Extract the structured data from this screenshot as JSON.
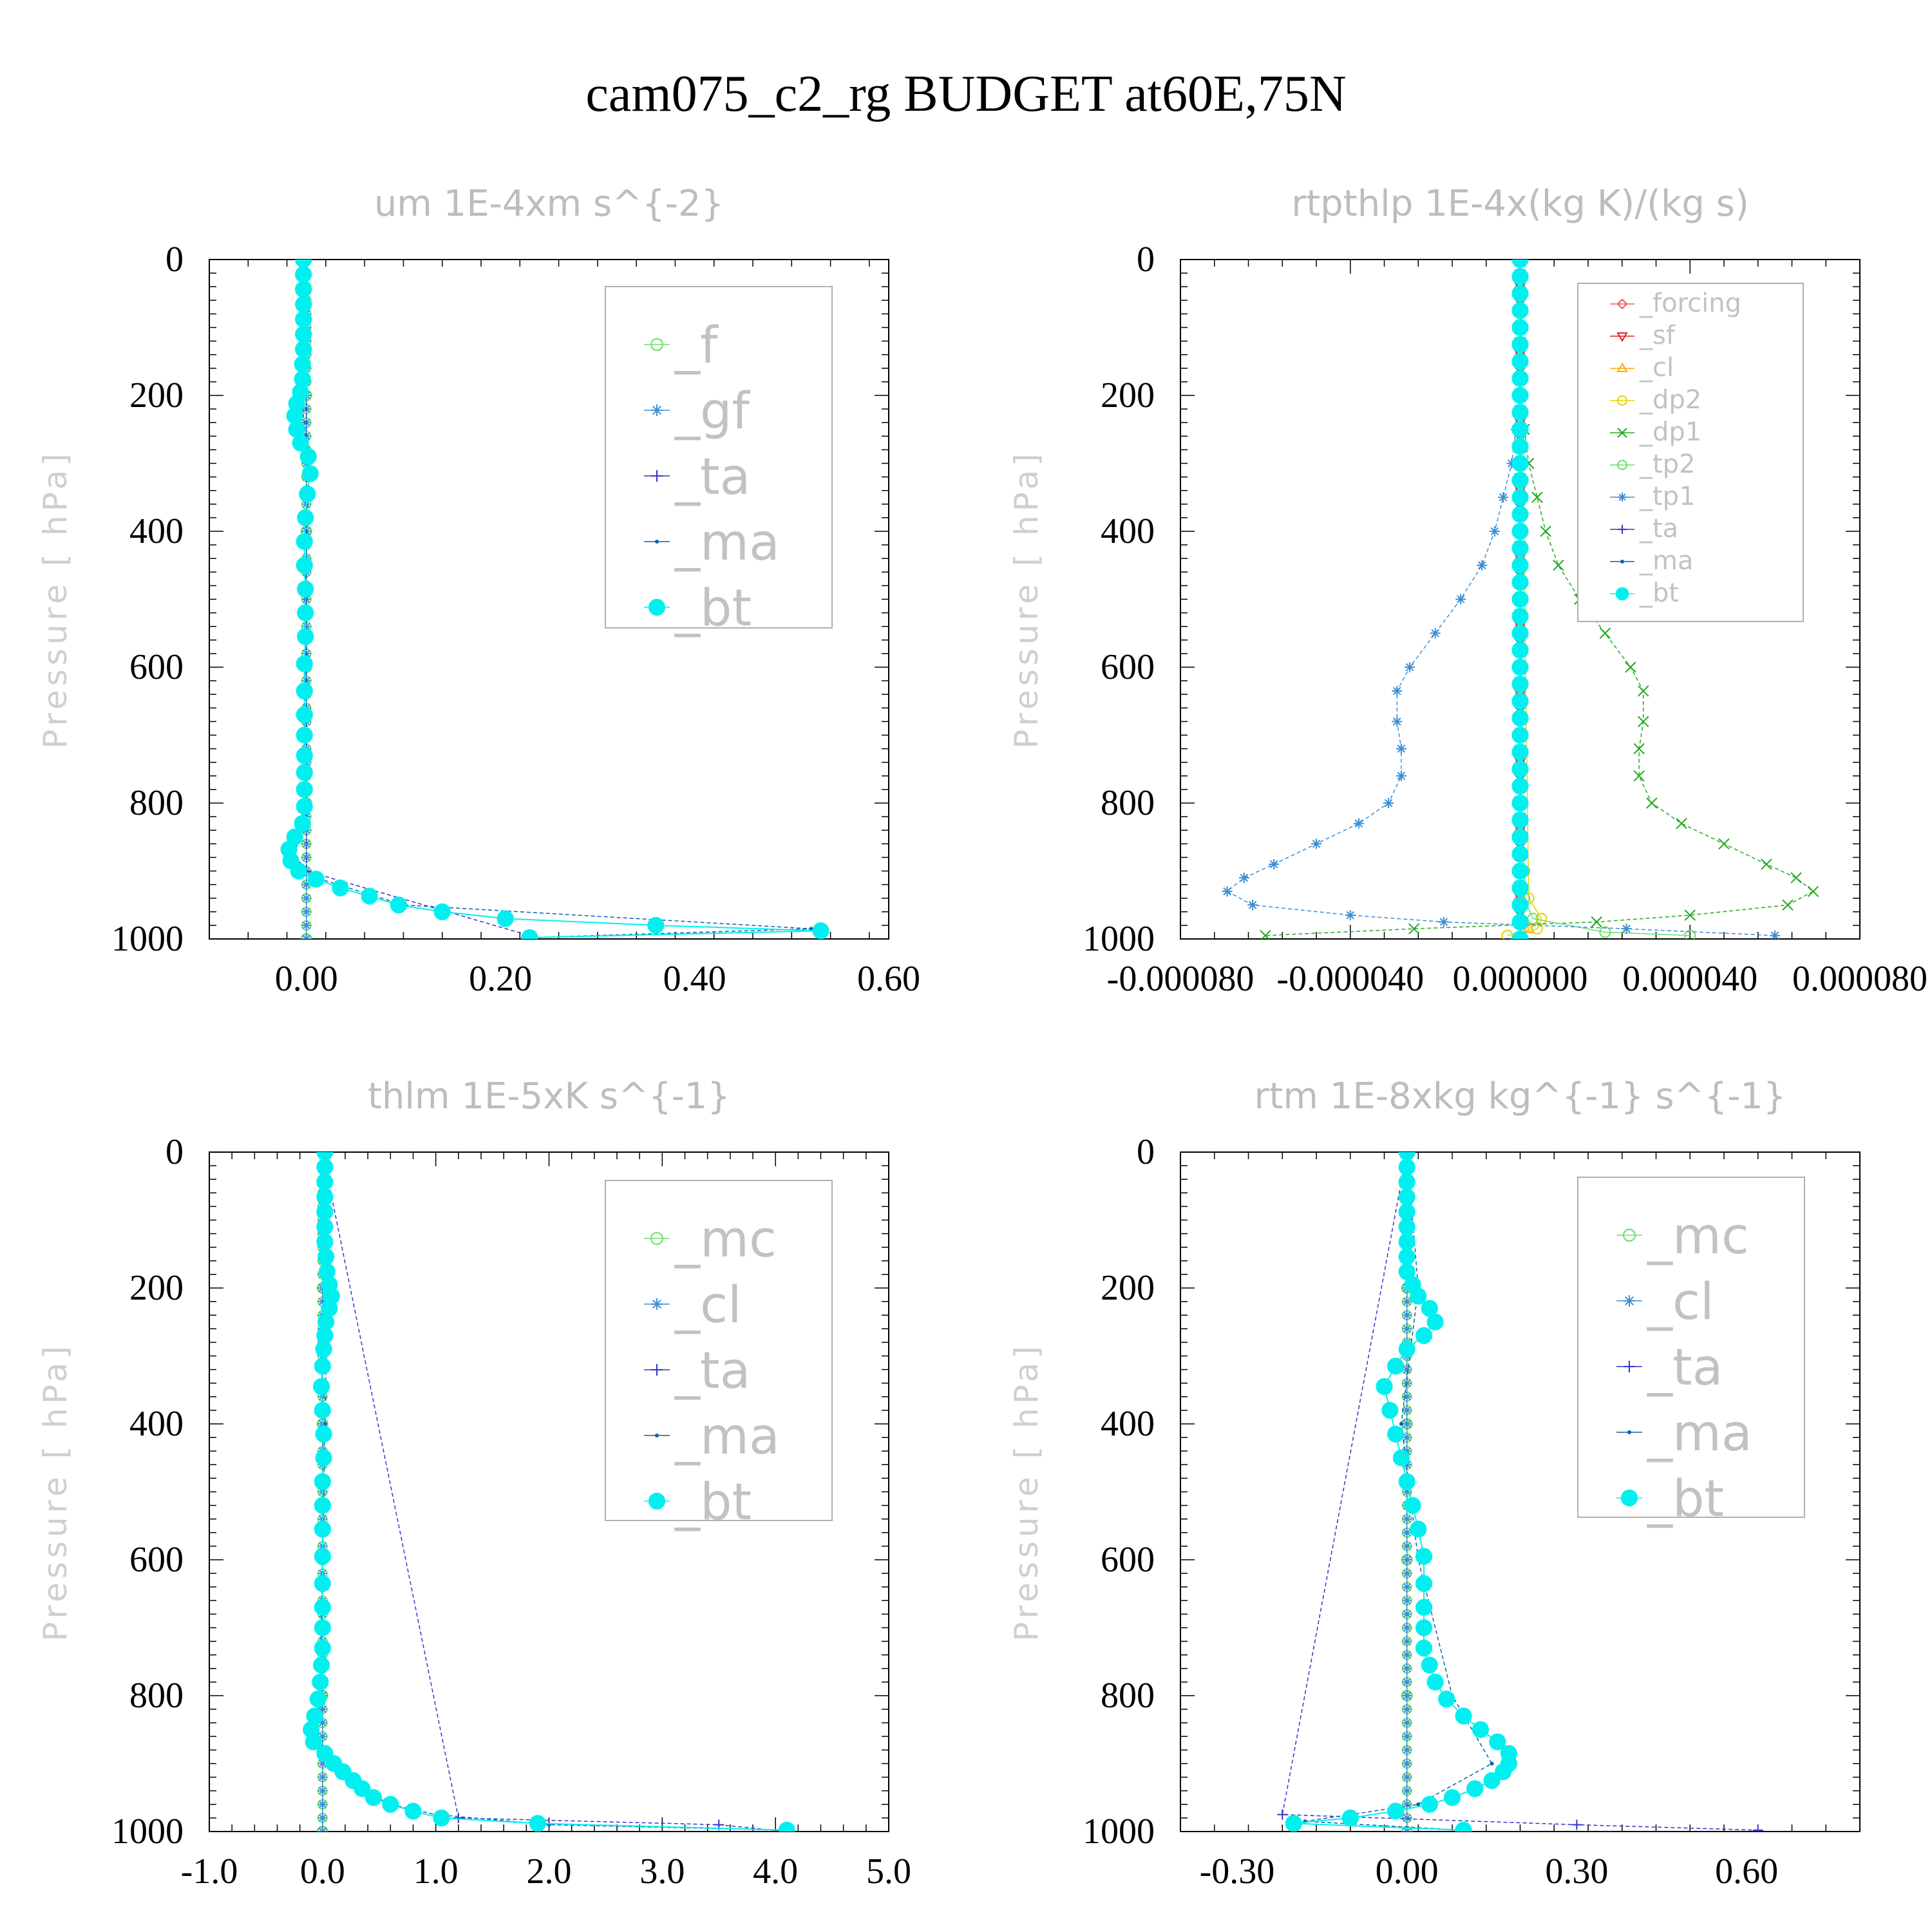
{
  "title": "cam075_c2_rg  BUDGET at60E,75N",
  "colors": {
    "_f": "#66e066",
    "_gf": "#3a8fd6",
    "_ta": "#3333cc",
    "_ma": "#0c5fb0",
    "_bt": "#00f0f0",
    "_forcing": "#e65c5c",
    "_sf": "#e02020",
    "_cl": "#ffa500",
    "_dp2": "#e6d000",
    "_dp1": "#22aa22",
    "_tp2": "#66e066",
    "_tp1": "#3a8fd6",
    "_mc": "#66e066",
    "_cl_blue": "#3a8fd6"
  },
  "chart_data": [
    {
      "type": "line",
      "title": "um  1E-4xm s^{-2}",
      "ylabel": "Pressure [ hPa]",
      "xlim": [
        -0.1,
        0.6
      ],
      "ylim": [
        1000,
        0
      ],
      "xticks": [
        0.0,
        0.2,
        0.4,
        0.6
      ],
      "xtick_labels": [
        "0.00",
        "0.20",
        "0.40",
        "0.60"
      ],
      "yticks": [
        0,
        200,
        400,
        600,
        800,
        1000
      ],
      "ytick_labels": [
        "0",
        "200",
        "400",
        "600",
        "800",
        "1000"
      ],
      "legend": [
        "_f",
        "_gf",
        "_ta",
        "_ma",
        "_bt"
      ],
      "legend_font": 78,
      "series": [
        {
          "name": "_f",
          "marker": "circle-open",
          "y": [
            0,
            200,
            400,
            600,
            800,
            1000
          ],
          "x": [
            0,
            0,
            0,
            0,
            0,
            0
          ]
        },
        {
          "name": "_gf",
          "marker": "star",
          "y": [
            0,
            200,
            400,
            600,
            800,
            1000
          ],
          "x": [
            0,
            0,
            0,
            0,
            0,
            0
          ]
        },
        {
          "name": "_ta",
          "marker": "plus",
          "y": [
            0,
            900,
            995
          ],
          "x": [
            0,
            0,
            0.23
          ]
        },
        {
          "name": "_ma",
          "marker": "dot",
          "y": [
            0,
            200,
            300,
            500,
            800,
            880,
            910,
            950,
            985,
            998
          ],
          "x": [
            -0.003,
            -0.005,
            0.002,
            -0.001,
            -0.002,
            -0.012,
            0.01,
            0.1,
            0.52,
            0.23
          ]
        },
        {
          "name": "_bt",
          "marker": "filled-circle",
          "y": [
            0,
            22,
            44,
            66,
            88,
            110,
            132,
            154,
            176,
            195,
            212,
            230,
            250,
            270,
            290,
            315,
            345,
            380,
            415,
            450,
            485,
            520,
            555,
            595,
            635,
            670,
            700,
            730,
            755,
            780,
            805,
            830,
            850,
            868,
            885,
            900,
            912,
            925,
            937,
            950,
            960,
            970,
            980,
            988,
            998
          ],
          "x": [
            -0.003,
            -0.003,
            -0.003,
            -0.003,
            -0.003,
            -0.003,
            -0.003,
            -0.004,
            -0.004,
            -0.006,
            -0.01,
            -0.012,
            -0.01,
            -0.006,
            0.002,
            0.004,
            0.001,
            -0.001,
            -0.002,
            -0.002,
            -0.001,
            -0.001,
            -0.001,
            -0.002,
            -0.002,
            -0.002,
            -0.002,
            -0.002,
            -0.002,
            -0.002,
            -0.002,
            -0.004,
            -0.012,
            -0.018,
            -0.016,
            -0.008,
            0.01,
            0.035,
            0.065,
            0.095,
            0.14,
            0.205,
            0.36,
            0.53,
            0.23
          ]
        }
      ]
    },
    {
      "type": "line",
      "title": "rtpthlp  1E-4x(kg K)/(kg s)",
      "ylabel": "Pressure [ hPa]",
      "xlim": [
        -8e-05,
        8e-05
      ],
      "ylim": [
        1000,
        0
      ],
      "xticks": [
        -8e-05,
        -4e-05,
        0.0,
        4e-05,
        8e-05
      ],
      "xtick_labels": [
        "-0.000080",
        "-0.000040",
        "0.000000",
        "0.000040",
        "0.000080"
      ],
      "yticks": [
        0,
        200,
        400,
        600,
        800,
        1000
      ],
      "ytick_labels": [
        "0",
        "200",
        "400",
        "600",
        "800",
        "1000"
      ],
      "legend": [
        "_forcing",
        "_sf",
        "_cl",
        "_dp2",
        "_dp1",
        "_tp2",
        "_tp1",
        "_ta",
        "_ma",
        "_bt"
      ],
      "legend_font": 40,
      "series": [
        {
          "name": "_forcing",
          "marker": "diamond",
          "y": [
            0,
            500,
            1000
          ],
          "x": [
            0,
            0,
            0
          ]
        },
        {
          "name": "_sf",
          "marker": "tri-down",
          "y": [
            0,
            500,
            1000
          ],
          "x": [
            0,
            0,
            0
          ]
        },
        {
          "name": "_cl",
          "marker": "tri-up",
          "y": [
            0,
            950,
            985,
            1000
          ],
          "x": [
            0,
            0,
            2e-06,
            0
          ]
        },
        {
          "name": "_dp2",
          "marker": "circle-open",
          "y": [
            0,
            940,
            970,
            985,
            995
          ],
          "x": [
            0,
            2e-06,
            5e-06,
            4e-06,
            -3e-06
          ]
        },
        {
          "name": "_dp1",
          "marker": "x",
          "y": [
            250,
            300,
            350,
            400,
            450,
            500,
            550,
            600,
            635,
            680,
            720,
            760,
            800,
            830,
            860,
            890,
            910,
            930,
            950,
            965,
            975,
            985,
            995
          ],
          "x": [
            1e-06,
            2e-06,
            4e-06,
            6e-06,
            9e-06,
            1.4e-05,
            2e-05,
            2.6e-05,
            2.9e-05,
            2.9e-05,
            2.8e-05,
            2.8e-05,
            3.1e-05,
            3.8e-05,
            4.8e-05,
            5.8e-05,
            6.5e-05,
            6.9e-05,
            6.3e-05,
            4e-05,
            1.8e-05,
            -2.5e-05,
            -6e-05
          ]
        },
        {
          "name": "_tp2",
          "marker": "circle-open",
          "y": [
            850,
            900,
            940,
            970,
            990,
            995
          ],
          "x": [
            0,
            1e-06,
            1e-06,
            3e-06,
            2e-05,
            4e-05
          ]
        },
        {
          "name": "_tp1",
          "marker": "star",
          "y": [
            250,
            300,
            350,
            400,
            450,
            500,
            550,
            600,
            635,
            680,
            720,
            760,
            800,
            830,
            860,
            890,
            910,
            930,
            950,
            965,
            975,
            985,
            995
          ],
          "x": [
            -1e-06,
            -2e-06,
            -4e-06,
            -6e-06,
            -9e-06,
            -1.4e-05,
            -2e-05,
            -2.6e-05,
            -2.9e-05,
            -2.9e-05,
            -2.8e-05,
            -2.8e-05,
            -3.1e-05,
            -3.8e-05,
            -4.8e-05,
            -5.8e-05,
            -6.5e-05,
            -6.9e-05,
            -6.3e-05,
            -4e-05,
            -1.8e-05,
            2.5e-05,
            6e-05
          ]
        },
        {
          "name": "_ta",
          "marker": "plus",
          "y": [
            0,
            1000
          ],
          "x": [
            0,
            0
          ]
        },
        {
          "name": "_ma",
          "marker": "dot",
          "y": [
            0,
            1000
          ],
          "x": [
            0,
            0
          ]
        },
        {
          "name": "_bt",
          "marker": "filled-circle",
          "y": [
            0,
            25,
            50,
            75,
            100,
            125,
            150,
            175,
            200,
            225,
            250,
            275,
            300,
            325,
            350,
            375,
            400,
            425,
            450,
            475,
            500,
            525,
            550,
            575,
            600,
            625,
            650,
            675,
            700,
            725,
            750,
            775,
            800,
            825,
            850,
            875,
            900,
            925,
            950,
            975,
            1000
          ],
          "x": [
            0,
            0,
            0,
            0,
            0,
            0,
            0,
            0,
            0,
            0,
            0,
            0,
            0,
            0,
            0,
            0,
            0,
            0,
            0,
            0,
            0,
            0,
            0,
            0,
            0,
            0,
            0,
            0,
            0,
            0,
            0,
            0,
            0,
            0,
            0,
            0,
            0,
            0,
            0,
            0,
            0
          ]
        }
      ]
    },
    {
      "type": "line",
      "title": "thlm  1E-5xK s^{-1}",
      "ylabel": "Pressure [ hPa]",
      "xlim": [
        -1.0,
        5.0
      ],
      "ylim": [
        1000,
        0
      ],
      "xticks": [
        -1.0,
        0.0,
        1.0,
        2.0,
        3.0,
        4.0,
        5.0
      ],
      "xtick_labels": [
        "-1.0",
        "0.0",
        "1.0",
        "2.0",
        "3.0",
        "4.0",
        "5.0"
      ],
      "yticks": [
        0,
        200,
        400,
        600,
        800,
        1000
      ],
      "ytick_labels": [
        "0",
        "200",
        "400",
        "600",
        "800",
        "1000"
      ],
      "legend": [
        "_mc",
        "_cl",
        "_ta",
        "_ma",
        "_bt"
      ],
      "legend_font": 78,
      "series": [
        {
          "name": "_mc",
          "marker": "circle-open",
          "y": [
            0,
            200,
            400,
            600,
            800,
            1000
          ],
          "x": [
            0,
            0,
            0,
            0,
            0,
            0
          ]
        },
        {
          "name": "_cl",
          "marker": "star",
          "y": [
            0,
            200,
            400,
            600,
            800,
            1000
          ],
          "x": [
            0,
            0,
            0,
            0,
            0,
            0
          ]
        },
        {
          "name": "_ta",
          "marker": "plus",
          "y": [
            0,
            980,
            990,
            1000
          ],
          "x": [
            0,
            1.2,
            3.5,
            4.1
          ]
        },
        {
          "name": "_ma",
          "marker": "dot",
          "y": [
            0,
            200,
            400,
            600,
            800,
            850,
            880,
            900,
            930,
            960,
            975,
            990,
            998
          ],
          "x": [
            0.02,
            0.05,
            0.02,
            0.0,
            -0.02,
            -0.05,
            0.0,
            0.08,
            0.25,
            0.6,
            1.0,
            2.0,
            4.1
          ]
        },
        {
          "name": "_bt",
          "marker": "filled-circle",
          "y": [
            0,
            22,
            44,
            66,
            88,
            110,
            132,
            154,
            176,
            195,
            212,
            230,
            250,
            270,
            290,
            315,
            345,
            380,
            415,
            450,
            485,
            520,
            555,
            595,
            635,
            670,
            700,
            730,
            755,
            780,
            805,
            830,
            850,
            868,
            885,
            900,
            912,
            925,
            937,
            950,
            960,
            970,
            980,
            988,
            998
          ],
          "x": [
            0.02,
            0.02,
            0.02,
            0.02,
            0.02,
            0.02,
            0.02,
            0.03,
            0.04,
            0.06,
            0.08,
            0.06,
            0.03,
            0.02,
            0.01,
            0.0,
            -0.01,
            0.0,
            0.01,
            0.01,
            0.0,
            0.0,
            0.0,
            0.0,
            0.0,
            0.0,
            0.0,
            0.0,
            -0.01,
            -0.02,
            -0.04,
            -0.07,
            -0.1,
            -0.08,
            0.02,
            0.1,
            0.18,
            0.27,
            0.35,
            0.45,
            0.6,
            0.8,
            1.05,
            1.9,
            4.1
          ]
        }
      ]
    },
    {
      "type": "line",
      "title": "rtm  1E-8xkg kg^{-1} s^{-1}",
      "ylabel": "Pressure [ hPa]",
      "xlim": [
        -0.4,
        0.8
      ],
      "ylim": [
        1000,
        0
      ],
      "xticks": [
        -0.3,
        0.0,
        0.3,
        0.6
      ],
      "xtick_labels": [
        "-0.30",
        "0.00",
        "0.30",
        "0.60"
      ],
      "yticks": [
        0,
        200,
        400,
        600,
        800,
        1000
      ],
      "ytick_labels": [
        "0",
        "200",
        "400",
        "600",
        "800",
        "1000"
      ],
      "legend": [
        "_mc",
        "_cl",
        "_ta",
        "_ma",
        "_bt"
      ],
      "legend_font": 78,
      "series": [
        {
          "name": "_mc",
          "marker": "circle-open",
          "y": [
            0,
            200,
            400,
            600,
            800,
            1000
          ],
          "x": [
            0,
            0,
            0,
            0,
            0,
            0
          ]
        },
        {
          "name": "_cl",
          "marker": "star",
          "y": [
            0,
            200,
            400,
            600,
            800,
            1000
          ],
          "x": [
            0,
            0,
            0,
            0,
            0,
            0
          ]
        },
        {
          "name": "_ta",
          "marker": "plus",
          "y": [
            0,
            975,
            990,
            998
          ],
          "x": [
            0,
            -0.22,
            0.3,
            0.62
          ]
        },
        {
          "name": "_ma",
          "marker": "dot",
          "y": [
            0,
            200,
            400,
            600,
            800,
            900,
            960,
            985,
            998
          ],
          "x": [
            0.0,
            0.02,
            -0.01,
            0.02,
            0.08,
            0.15,
            0.02,
            -0.18,
            0.1
          ]
        },
        {
          "name": "_bt",
          "marker": "filled-circle",
          "y": [
            0,
            22,
            44,
            66,
            88,
            110,
            132,
            154,
            176,
            195,
            212,
            230,
            250,
            270,
            290,
            315,
            345,
            380,
            415,
            450,
            485,
            520,
            555,
            595,
            635,
            670,
            700,
            730,
            755,
            780,
            805,
            830,
            850,
            868,
            885,
            900,
            912,
            925,
            937,
            950,
            960,
            970,
            980,
            988,
            998
          ],
          "x": [
            0.0,
            0.0,
            0.0,
            0.0,
            0.0,
            0.0,
            0.0,
            0.0,
            0.0,
            0.01,
            0.02,
            0.04,
            0.05,
            0.03,
            0.0,
            -0.02,
            -0.04,
            -0.03,
            -0.02,
            -0.01,
            0.0,
            0.01,
            0.02,
            0.03,
            0.03,
            0.03,
            0.03,
            0.03,
            0.04,
            0.05,
            0.07,
            0.1,
            0.13,
            0.16,
            0.18,
            0.18,
            0.17,
            0.15,
            0.12,
            0.08,
            0.04,
            -0.02,
            -0.1,
            -0.2,
            0.1
          ]
        }
      ]
    }
  ]
}
